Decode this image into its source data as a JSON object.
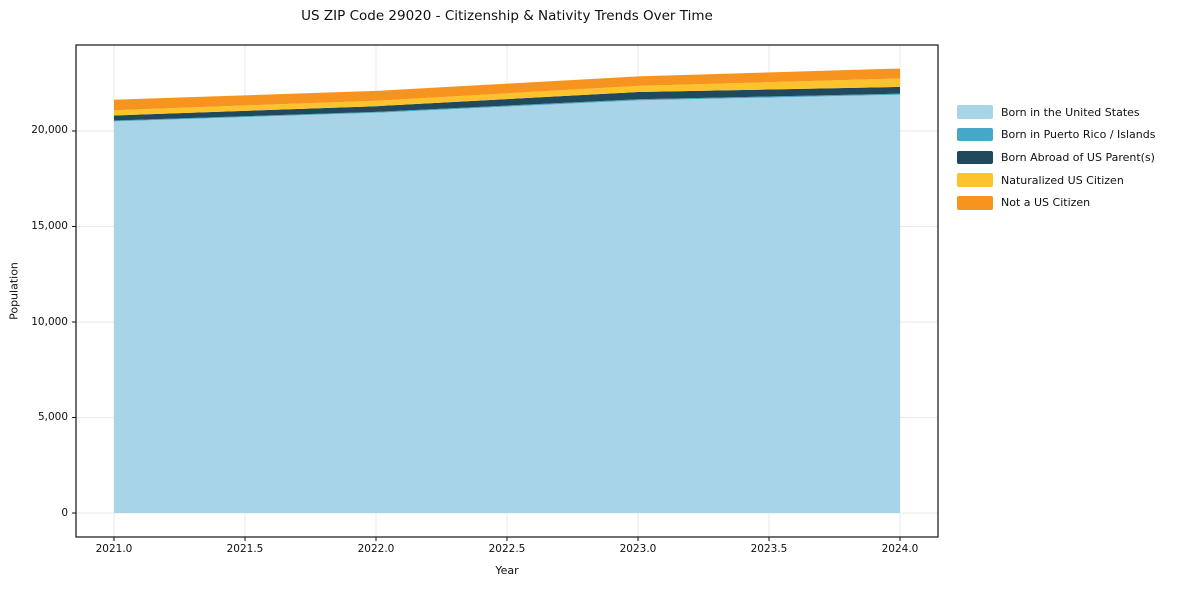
{
  "chart_data": {
    "type": "area",
    "stacked": true,
    "title": "US ZIP Code 29020 - Citizenship & Nativity Trends Over Time",
    "xlabel": "Year",
    "ylabel": "Population",
    "x": [
      2021,
      2022,
      2023,
      2024
    ],
    "series": [
      {
        "name": "Born in the United States",
        "color": "#a8d4e8",
        "values": [
          20500,
          20950,
          21600,
          21900
        ]
      },
      {
        "name": "Born in Puerto Rico / Islands",
        "color": "#46a8c8",
        "values": [
          50,
          50,
          60,
          60
        ]
      },
      {
        "name": "Born Abroad of US Parent(s)",
        "color": "#20495c",
        "values": [
          260,
          300,
          380,
          350
        ]
      },
      {
        "name": "Naturalized US Citizen",
        "color": "#fcc32d",
        "values": [
          280,
          280,
          320,
          440
        ]
      },
      {
        "name": "Not a US Citizen",
        "color": "#f7941f",
        "values": [
          550,
          520,
          500,
          520
        ]
      }
    ],
    "xticks": {
      "values": [
        2021.0,
        2021.5,
        2022.0,
        2022.5,
        2023.0,
        2023.5,
        2024.0
      ],
      "labels": [
        "2021.0",
        "2021.5",
        "2022.0",
        "2022.5",
        "2023.0",
        "2023.5",
        "2024.0"
      ]
    },
    "yticks": {
      "values": [
        0,
        5000,
        10000,
        15000,
        20000
      ],
      "labels": [
        "0",
        "5,000",
        "10,000",
        "15,000",
        "20,000"
      ]
    },
    "xlim": [
      2020.855,
      2024.145
    ],
    "ylim": [
      -1256,
      24502
    ],
    "grid": true,
    "grid_color": "#e9e9e9",
    "spine_color": "#111111",
    "legend_position": "right"
  }
}
